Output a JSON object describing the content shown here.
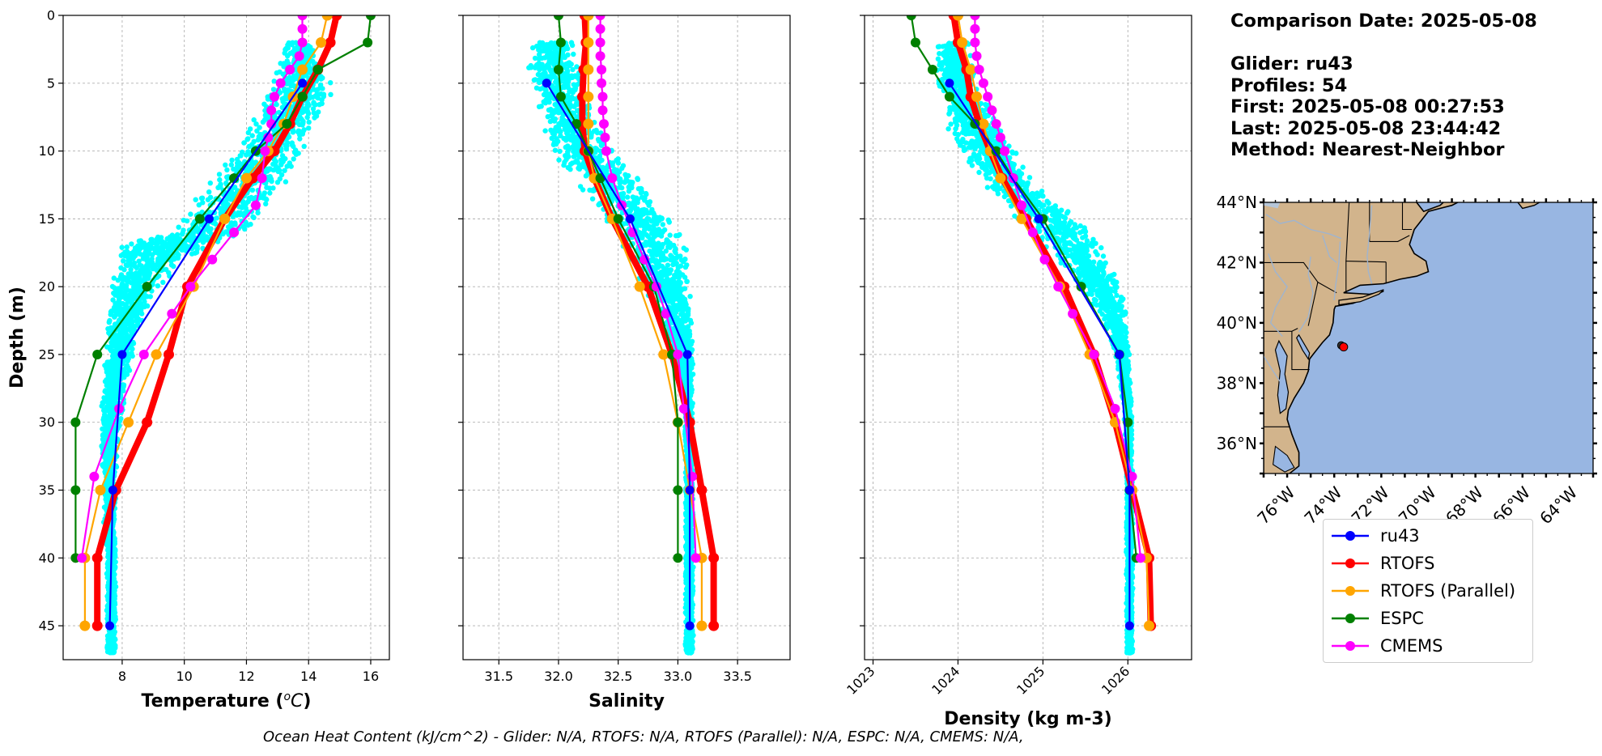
{
  "info": {
    "comparison_date": "Comparison Date: 2025-05-08",
    "glider": "Glider: ru43",
    "profiles": "Profiles: 54",
    "first": "First: 2025-05-08 00:27:53",
    "last": "Last: 2025-05-08 23:44:42",
    "method": "Method: Nearest-Neighbor"
  },
  "footer": "Ocean Heat Content (kJ/cm^2) - Glider: N/A,  RTOFS: N/A,  RTOFS (Parallel): N/A,  ESPC: N/A,  CMEMS: N/A,",
  "colors": {
    "glider_scatter": "#00ffff",
    "ru43": "#0000ff",
    "rtofs": "#ff0000",
    "rtofs_parallel": "#ffa500",
    "espc": "#008000",
    "cmems": "#ff00ff",
    "land": "#d2b48c",
    "ocean": "#98b6e2",
    "grid": "#b0b0b0"
  },
  "legend": [
    {
      "label": "ru43",
      "color": "#0000ff"
    },
    {
      "label": "RTOFS",
      "color": "#ff0000"
    },
    {
      "label": "RTOFS (Parallel)",
      "color": "#ffa500"
    },
    {
      "label": "ESPC",
      "color": "#008000"
    },
    {
      "label": "CMEMS",
      "color": "#ff00ff"
    }
  ],
  "map": {
    "lat_labels": [
      "44°N",
      "42°N",
      "40°N",
      "38°N",
      "36°N"
    ],
    "lon_labels": [
      "76°W",
      "74°W",
      "72°W",
      "70°W",
      "68°W",
      "66°W",
      "64°W"
    ],
    "lat_values": [
      44,
      42,
      40,
      38,
      36
    ],
    "lon_values": [
      -76,
      -74,
      -72,
      -70,
      -68,
      -66,
      -64
    ],
    "glider_location": {
      "lon": -73.6,
      "lat": 39.2
    }
  },
  "chart_data": [
    {
      "type": "line",
      "xlabel": "Temperature ($^{o}C$)",
      "xlabel_display": "Temperature (",
      "xlabel_unit": "oC",
      "ylabel": "Depth (m)",
      "xlim": [
        6.1,
        16.6
      ],
      "ylim": [
        47.5,
        0
      ],
      "xticks": [
        8,
        10,
        12,
        14,
        16
      ],
      "yticks": [
        0,
        5,
        10,
        15,
        20,
        25,
        30,
        35,
        40,
        45
      ],
      "grid": true,
      "glider_scatter_envelope": {
        "depth": [
          2,
          4,
          6,
          8,
          10,
          12,
          14,
          16,
          17,
          18,
          20,
          22,
          24,
          26,
          28,
          30,
          32,
          34,
          36,
          38,
          40,
          42,
          44,
          46,
          47
        ],
        "min": [
          13.2,
          12.9,
          12.6,
          12.1,
          11.6,
          10.9,
          10.1,
          9.4,
          7.8,
          7.7,
          7.6,
          7.5,
          7.4,
          7.4,
          7.3,
          7.3,
          7.3,
          7.4,
          7.4,
          7.4,
          7.5,
          7.5,
          7.5,
          7.5,
          7.5
        ],
        "max": [
          14.2,
          14.7,
          14.8,
          14.3,
          13.9,
          13.4,
          12.8,
          12.0,
          11.0,
          10.1,
          9.3,
          8.8,
          8.5,
          8.3,
          8.1,
          8.0,
          7.9,
          7.8,
          7.8,
          7.8,
          7.8,
          7.8,
          7.8,
          7.8,
          7.8
        ]
      },
      "series": [
        {
          "name": "ru43",
          "depth": [
            5,
            15,
            25,
            35,
            45
          ],
          "values": [
            13.8,
            10.8,
            8.0,
            7.7,
            7.6
          ]
        },
        {
          "name": "RTOFS",
          "depth": [
            0,
            2,
            4,
            6,
            8,
            10,
            12,
            15,
            20,
            25,
            30,
            35,
            40,
            45
          ],
          "values": [
            14.9,
            14.7,
            14.3,
            13.8,
            13.4,
            12.9,
            12.2,
            11.3,
            10.1,
            9.5,
            8.8,
            7.8,
            7.2,
            7.2
          ]
        },
        {
          "name": "RTOFS (Parallel)",
          "depth": [
            0,
            2,
            4,
            6,
            8,
            10,
            12,
            15,
            20,
            25,
            30,
            35,
            40,
            45
          ],
          "values": [
            14.6,
            14.4,
            13.8,
            13.5,
            13.2,
            12.7,
            12.0,
            11.3,
            10.3,
            9.1,
            8.2,
            7.3,
            6.8,
            6.8
          ]
        },
        {
          "name": "ESPC",
          "depth": [
            0,
            2,
            4,
            6,
            8,
            10,
            12,
            15,
            20,
            25,
            30,
            35,
            40
          ],
          "values": [
            16.0,
            15.9,
            14.3,
            13.8,
            13.3,
            12.3,
            11.6,
            10.5,
            8.8,
            7.2,
            6.5,
            6.5,
            6.5
          ]
        },
        {
          "name": "CMEMS",
          "depth": [
            0,
            1,
            2,
            3,
            4,
            5,
            6,
            7,
            8,
            9,
            10,
            12,
            14,
            16,
            18,
            20,
            22,
            25,
            29,
            34,
            40
          ],
          "values": [
            13.8,
            13.8,
            13.8,
            13.7,
            13.4,
            13.1,
            12.9,
            12.8,
            12.8,
            12.7,
            12.6,
            12.5,
            12.3,
            11.6,
            10.9,
            10.2,
            9.6,
            8.7,
            7.9,
            7.1,
            6.7
          ]
        }
      ]
    },
    {
      "type": "line",
      "xlabel": "Salinity",
      "xlim": [
        31.2,
        33.94
      ],
      "ylim": [
        47.5,
        0
      ],
      "xticks": [
        31.5,
        32.0,
        32.5,
        33.0,
        33.5
      ],
      "xtick_labels": [
        "31.5",
        "32.0",
        "32.5",
        "33.0",
        "33.5"
      ],
      "grid": true,
      "glider_scatter_envelope": {
        "depth": [
          2,
          4,
          6,
          8,
          10,
          12,
          14,
          16,
          18,
          20,
          22,
          24,
          26,
          28,
          30,
          32,
          34,
          36,
          38,
          40,
          42,
          44,
          46,
          47
        ],
        "min": [
          31.75,
          31.72,
          31.78,
          31.85,
          31.9,
          32.1,
          32.3,
          32.45,
          32.58,
          32.7,
          32.82,
          32.92,
          32.98,
          33.03,
          33.05,
          33.06,
          33.06,
          33.06,
          33.06,
          33.06,
          33.06,
          33.06,
          33.06,
          33.06
        ],
        "max": [
          32.15,
          32.2,
          32.25,
          32.35,
          32.5,
          32.7,
          32.9,
          33.05,
          33.1,
          33.12,
          33.13,
          33.13,
          33.13,
          33.13,
          33.13,
          33.13,
          33.13,
          33.13,
          33.13,
          33.13,
          33.13,
          33.13,
          33.13,
          33.13
        ]
      },
      "series": [
        {
          "name": "ru43",
          "depth": [
            5,
            15,
            25,
            35,
            45
          ],
          "values": [
            31.9,
            32.6,
            33.08,
            33.1,
            33.1
          ]
        },
        {
          "name": "RTOFS",
          "depth": [
            0,
            2,
            4,
            6,
            8,
            10,
            12,
            15,
            20,
            25,
            30,
            35,
            40,
            45
          ],
          "values": [
            32.22,
            32.23,
            32.21,
            32.2,
            32.2,
            32.22,
            32.3,
            32.45,
            32.75,
            32.95,
            33.1,
            33.2,
            33.3,
            33.3
          ]
        },
        {
          "name": "RTOFS (Parallel)",
          "depth": [
            0,
            2,
            4,
            6,
            8,
            10,
            12,
            15,
            20,
            25,
            30,
            35,
            40,
            45
          ],
          "values": [
            32.25,
            32.25,
            32.25,
            32.25,
            32.25,
            32.25,
            32.3,
            32.45,
            32.68,
            32.88,
            33.0,
            33.1,
            33.2,
            33.2
          ]
        },
        {
          "name": "ESPC",
          "depth": [
            0,
            2,
            4,
            6,
            8,
            10,
            12,
            15,
            20,
            25,
            30,
            35,
            40
          ],
          "values": [
            32.0,
            32.02,
            32.0,
            32.02,
            32.15,
            32.25,
            32.35,
            32.5,
            32.8,
            32.95,
            33.0,
            33.0,
            33.0
          ]
        },
        {
          "name": "CMEMS",
          "depth": [
            0,
            1,
            2,
            3,
            4,
            5,
            6,
            7,
            8,
            9,
            10,
            12,
            14,
            16,
            18,
            20,
            22,
            25,
            29,
            34,
            40
          ],
          "values": [
            32.35,
            32.35,
            32.35,
            32.35,
            32.36,
            32.36,
            32.37,
            32.37,
            32.38,
            32.39,
            32.4,
            32.45,
            32.53,
            32.62,
            32.72,
            32.82,
            32.9,
            33.0,
            33.05,
            33.12,
            33.15
          ]
        }
      ]
    },
    {
      "type": "line",
      "xlabel": "Density (kg m-3)",
      "xlim": [
        1022.9,
        1026.75
      ],
      "ylim": [
        47.5,
        0
      ],
      "xticks": [
        1023,
        1024,
        1025,
        1026
      ],
      "grid": true,
      "glider_scatter_envelope": {
        "depth": [
          2,
          4,
          6,
          8,
          10,
          12,
          14,
          16,
          18,
          20,
          22,
          24,
          26,
          28,
          30,
          32,
          34,
          36,
          38,
          40,
          42,
          44,
          46,
          47
        ],
        "min": [
          1023.75,
          1023.72,
          1023.78,
          1023.85,
          1024.0,
          1024.25,
          1024.5,
          1024.85,
          1025.15,
          1025.45,
          1025.65,
          1025.8,
          1025.88,
          1025.93,
          1025.96,
          1025.97,
          1025.98,
          1025.98,
          1025.98,
          1025.98,
          1025.98,
          1025.98,
          1025.98,
          1025.98
        ],
        "max": [
          1024.15,
          1024.2,
          1024.3,
          1024.5,
          1024.7,
          1024.95,
          1025.25,
          1025.6,
          1025.8,
          1025.95,
          1026.0,
          1026.02,
          1026.03,
          1026.04,
          1026.05,
          1026.05,
          1026.06,
          1026.06,
          1026.06,
          1026.06,
          1026.06,
          1026.06,
          1026.06,
          1026.06
        ]
      },
      "series": [
        {
          "name": "ru43",
          "depth": [
            5,
            15,
            25,
            35,
            45
          ],
          "values": [
            1023.9,
            1024.95,
            1025.9,
            1026.02,
            1026.02
          ]
        },
        {
          "name": "RTOFS",
          "depth": [
            0,
            2,
            4,
            6,
            8,
            10,
            12,
            15,
            20,
            25,
            30,
            35,
            40,
            45
          ],
          "values": [
            1023.95,
            1024.0,
            1024.1,
            1024.15,
            1024.25,
            1024.38,
            1024.52,
            1024.8,
            1025.25,
            1025.6,
            1025.85,
            1026.05,
            1026.25,
            1026.27
          ]
        },
        {
          "name": "RTOFS (Parallel)",
          "depth": [
            0,
            2,
            4,
            6,
            8,
            10,
            12,
            15,
            20,
            25,
            30,
            35,
            40,
            45
          ],
          "values": [
            1024.0,
            1024.05,
            1024.15,
            1024.22,
            1024.3,
            1024.38,
            1024.5,
            1024.75,
            1025.2,
            1025.55,
            1025.85,
            1026.05,
            1026.22,
            1026.25
          ]
        },
        {
          "name": "ESPC",
          "depth": [
            0,
            2,
            4,
            6,
            8,
            10,
            12,
            15,
            20,
            25,
            30,
            35,
            40
          ],
          "values": [
            1023.45,
            1023.5,
            1023.7,
            1023.9,
            1024.2,
            1024.45,
            1024.65,
            1025.0,
            1025.45,
            1025.9,
            1026.0,
            1026.02,
            1026.1
          ]
        },
        {
          "name": "CMEMS",
          "depth": [
            0,
            1,
            2,
            3,
            4,
            5,
            6,
            7,
            8,
            9,
            10,
            12,
            14,
            16,
            18,
            20,
            22,
            25,
            29,
            34,
            40
          ],
          "values": [
            1024.2,
            1024.2,
            1024.2,
            1024.22,
            1024.25,
            1024.3,
            1024.35,
            1024.4,
            1024.45,
            1024.5,
            1024.55,
            1024.65,
            1024.75,
            1024.88,
            1025.02,
            1025.18,
            1025.35,
            1025.6,
            1025.85,
            1026.05,
            1026.15
          ]
        }
      ]
    }
  ]
}
